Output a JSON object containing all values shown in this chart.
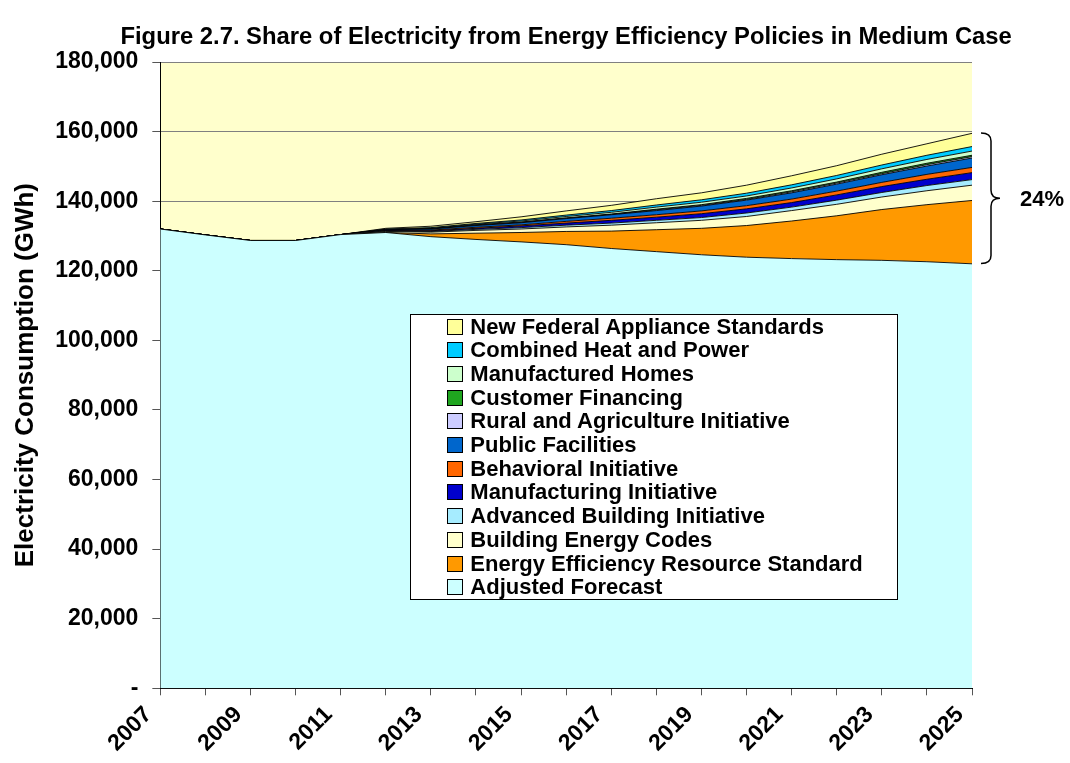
{
  "chart_data": {
    "type": "area",
    "stacked": true,
    "title": "Figure 2.7. Share of Electricity from Energy Efficiency Policies in Medium Case",
    "ylabel": "Electricity Consumption (GWh)",
    "x": [
      2007,
      2008,
      2009,
      2010,
      2011,
      2012,
      2013,
      2014,
      2015,
      2016,
      2017,
      2018,
      2019,
      2020,
      2021,
      2022,
      2023,
      2024,
      2025
    ],
    "xlim": [
      2007,
      2025
    ],
    "xticks": [
      2007,
      {
        "value": 2008,
        "label": null
      },
      2009,
      {
        "value": 2010,
        "label": null
      },
      2011,
      {
        "value": 2012,
        "label": null
      },
      2013,
      {
        "value": 2014,
        "label": null
      },
      2015,
      {
        "value": 2016,
        "label": null
      },
      2017,
      {
        "value": 2018,
        "label": null
      },
      2019,
      {
        "value": 2020,
        "label": null
      },
      2021,
      {
        "value": 2022,
        "label": null
      },
      2023,
      {
        "value": 2024,
        "label": null
      },
      2025
    ],
    "ylim": [
      0,
      180000
    ],
    "yticks": [
      {
        "value": 0,
        "label": "-"
      },
      {
        "value": 20000,
        "label": "20,000"
      },
      {
        "value": 40000,
        "label": "40,000"
      },
      {
        "value": 60000,
        "label": "60,000"
      },
      {
        "value": 80000,
        "label": "80,000"
      },
      {
        "value": 100000,
        "label": "100,000"
      },
      {
        "value": 120000,
        "label": "120,000"
      },
      {
        "value": 140000,
        "label": "140,000"
      },
      {
        "value": 160000,
        "label": "160,000"
      },
      {
        "value": 180000,
        "label": "180,000"
      }
    ],
    "grid": "y",
    "legend": "center",
    "annotations": [
      "24%"
    ],
    "series": [
      {
        "name": "Adjusted Forecast",
        "color": "#ccffff",
        "values": [
          132000,
          130300,
          128700,
          128700,
          130400,
          131000,
          129800,
          129000,
          128300,
          127500,
          126400,
          125500,
          124600,
          123900,
          123500,
          123200,
          123000,
          122600,
          122000
        ]
      },
      {
        "name": "Energy Efficiency Resource Standard",
        "color": "#ff9900",
        "values": [
          0,
          0,
          0,
          0,
          0,
          0,
          800,
          1800,
          2700,
          3800,
          5000,
          6300,
          7600,
          9100,
          10800,
          12600,
          14600,
          16400,
          18200
        ]
      },
      {
        "name": "Building Energy Codes",
        "color": "#ffffcc",
        "values": [
          0,
          0,
          0,
          0,
          0,
          300,
          500,
          800,
          1000,
          1300,
          1700,
          2000,
          2300,
          2600,
          3000,
          3300,
          3600,
          4000,
          4400
        ]
      },
      {
        "name": "Advanced Building Initiative",
        "color": "#a6ecff",
        "values": [
          0,
          0,
          0,
          0,
          0,
          100,
          200,
          300,
          400,
          500,
          600,
          700,
          800,
          1000,
          1000,
          1200,
          1300,
          1500,
          1600
        ]
      },
      {
        "name": "Manufacturing Initiative",
        "color": "#0000cc",
        "values": [
          0,
          0,
          0,
          0,
          0,
          100,
          200,
          300,
          500,
          600,
          800,
          900,
          1100,
          1200,
          1300,
          1500,
          1700,
          1800,
          2000
        ]
      },
      {
        "name": "Behavioral Initiative",
        "color": "#ff6600",
        "values": [
          0,
          0,
          0,
          0,
          0,
          100,
          200,
          300,
          300,
          500,
          600,
          700,
          800,
          900,
          1000,
          1100,
          1200,
          1400,
          1500
        ]
      },
      {
        "name": "Public Facilities",
        "color": "#0066cc",
        "values": [
          0,
          0,
          0,
          0,
          0,
          200,
          300,
          500,
          600,
          800,
          1000,
          1200,
          1400,
          1600,
          1800,
          2000,
          2200,
          2400,
          2700
        ]
      },
      {
        "name": "Rural and Agriculture Initiative",
        "color": "#ccccff",
        "values": [
          0,
          0,
          0,
          0,
          0,
          0,
          0,
          100,
          100,
          100,
          100,
          200,
          200,
          200,
          300,
          300,
          300,
          400,
          400
        ]
      },
      {
        "name": "Customer Financing",
        "color": "#1fa51f",
        "values": [
          0,
          0,
          0,
          0,
          0,
          0,
          100,
          100,
          100,
          100,
          100,
          200,
          200,
          300,
          300,
          300,
          400,
          400,
          400
        ]
      },
      {
        "name": "Manufactured Homes",
        "color": "#ccffcc",
        "values": [
          0,
          0,
          0,
          0,
          0,
          100,
          100,
          200,
          300,
          400,
          500,
          600,
          700,
          700,
          800,
          900,
          1000,
          1100,
          1200
        ]
      },
      {
        "name": "Combined Heat and Power",
        "color": "#00ccff",
        "values": [
          0,
          0,
          0,
          0,
          0,
          100,
          200,
          200,
          300,
          400,
          500,
          600,
          700,
          800,
          900,
          1000,
          1100,
          1200,
          1300
        ]
      },
      {
        "name": "New Federal Appliance Standards",
        "color": "#ffff99",
        "values": [
          0,
          0,
          0,
          0,
          0,
          200,
          400,
          500,
          900,
          1200,
          1500,
          1800,
          2000,
          2300,
          2600,
          2800,
          3100,
          3300,
          3800
        ]
      }
    ]
  }
}
